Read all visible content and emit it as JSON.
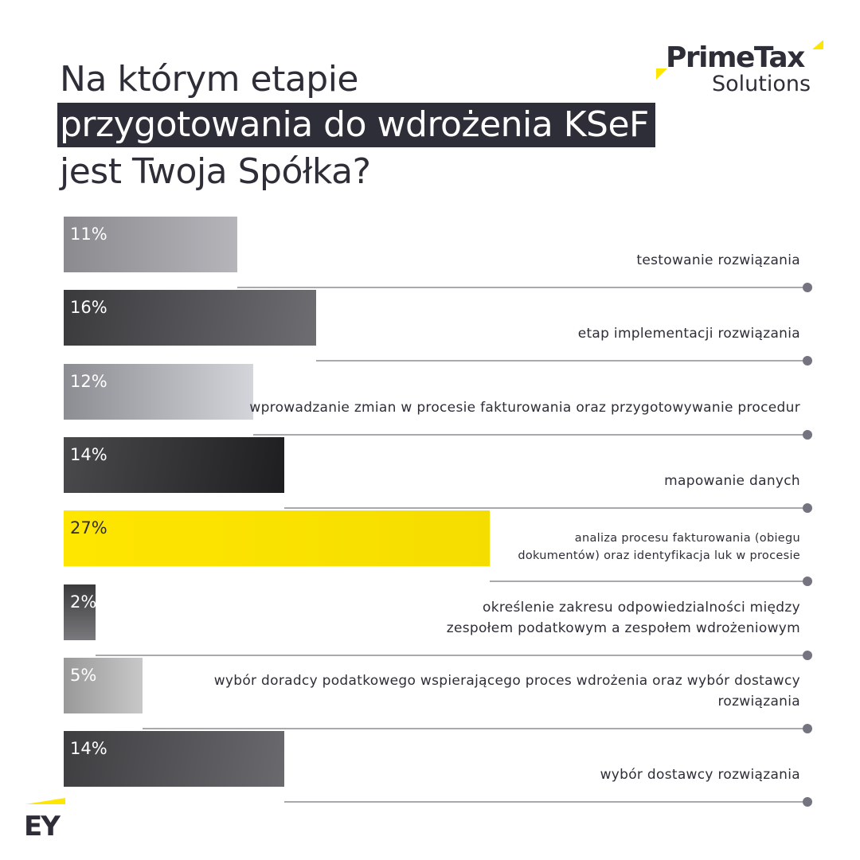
{
  "header": {
    "title_line1": "Na którym etapie",
    "title_line2": "przygotowania do wdrożenia KSeF",
    "title_line3": "jest Twoja Spółka?"
  },
  "brand": {
    "primetax": "PrimeTax",
    "solutions": "Solutions",
    "ey": "EY"
  },
  "colors": {
    "text": "#2e2e38",
    "accent_yellow": "#ffe600",
    "line": "#a8a8ad",
    "dot": "#747480"
  },
  "chart_data": {
    "type": "bar",
    "orientation": "horizontal",
    "unit": "%",
    "xlim": [
      0,
      100
    ],
    "grid": false,
    "legend": "none",
    "categories": [
      "testowanie rozwiązania",
      "etap implementacji rozwiązania",
      "wprowadzanie zmian w procesie fakturowania oraz przygotowywanie procedur",
      "mapowanie danych",
      "analiza procesu fakturowania (obiegu dokumentów) oraz identyfikacja luk w procesie",
      "określenie zakresu odpowiedzialności między zespołem podatkowym a zespołem wdrożeniowym",
      "wybór doradcy podatkowego wspierającego proces wdrożenia oraz wybór dostawcy rozwiązania",
      "wybór dostawcy rozwiązania"
    ],
    "values": [
      11,
      16,
      12,
      14,
      27,
      2,
      5,
      14
    ],
    "value_labels": [
      "11%",
      "16%",
      "12%",
      "14%",
      "27%",
      "2%",
      "5%",
      "14%"
    ],
    "highlight_index": 4
  }
}
